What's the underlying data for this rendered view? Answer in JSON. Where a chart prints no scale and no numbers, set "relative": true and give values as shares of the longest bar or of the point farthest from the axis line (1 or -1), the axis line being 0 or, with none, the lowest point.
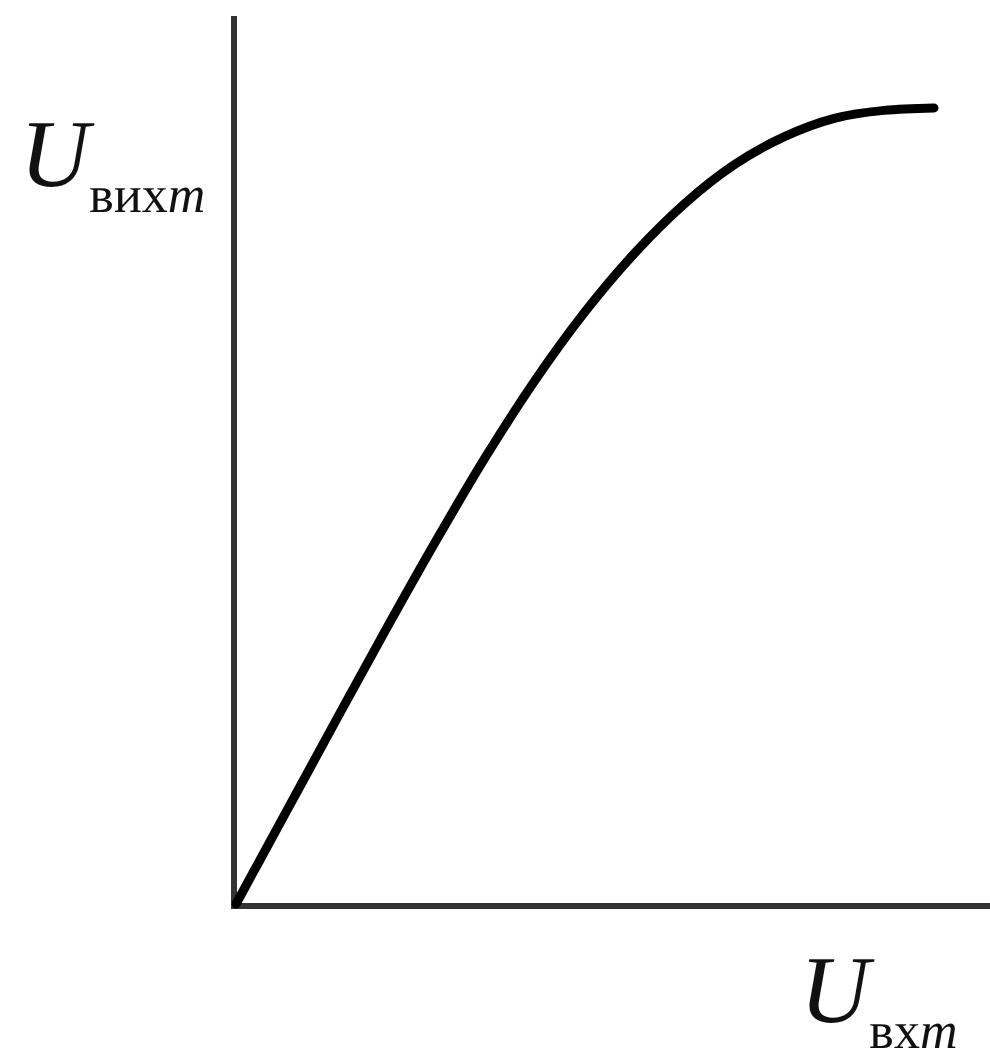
{
  "chart_data": {
    "type": "line",
    "relative": true,
    "xlabel": "U$_{вхm}$",
    "ylabel": "U$_{вихm}$",
    "color": "#000000",
    "categories": [
      null,
      null,
      null,
      null,
      null,
      null,
      null,
      null,
      null,
      null,
      null,
      null,
      null,
      null,
      null
    ],
    "values": [
      0,
      0.115,
      0.23,
      0.344,
      0.455,
      0.561,
      0.658,
      0.744,
      0.818,
      0.88,
      0.929,
      0.964,
      0.987,
      0.997,
      1
    ]
  }
}
